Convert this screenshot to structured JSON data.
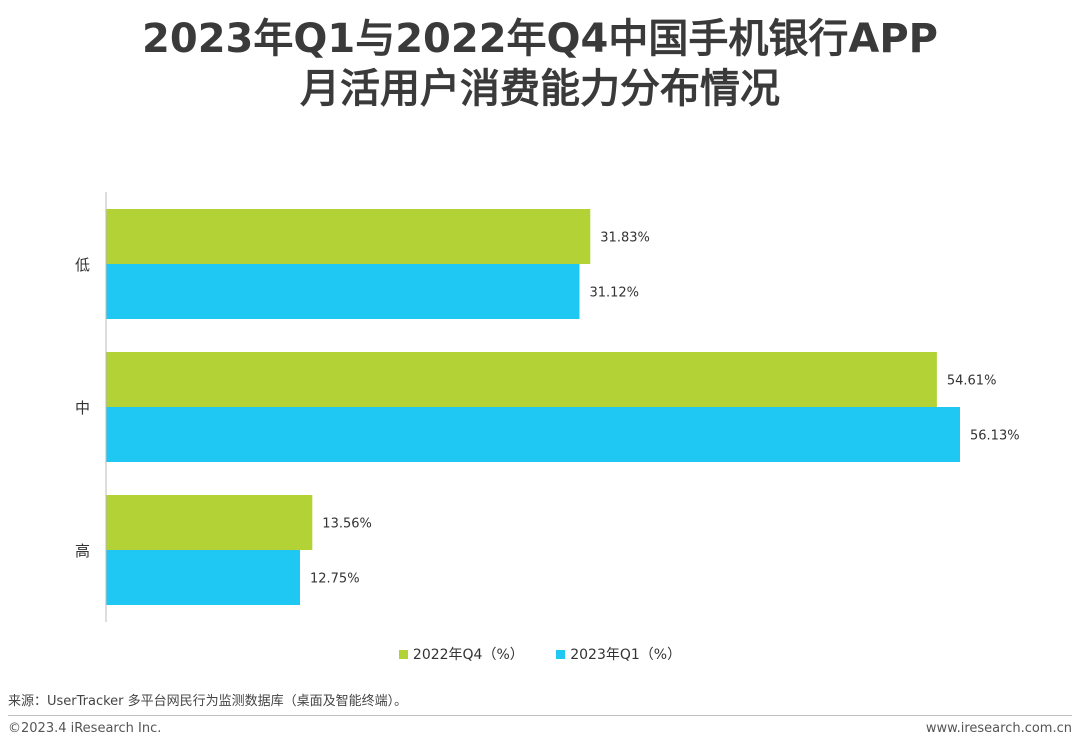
{
  "chart_data": {
    "type": "bar",
    "orientation": "horizontal",
    "title": "2023年Q1与2022年Q4中国手机银行APP\n月活用户消费能力分布情况",
    "categories": [
      "低",
      "中",
      "高"
    ],
    "series": [
      {
        "name": "2022年Q4（%）",
        "values": [
          31.83,
          54.61,
          13.56
        ],
        "labels": [
          "31.83%",
          "54.61%",
          "13.56%"
        ],
        "color": "#b2d235"
      },
      {
        "name": "2023年Q1（%）",
        "values": [
          31.12,
          56.13,
          12.75
        ],
        "labels": [
          "31.12%",
          "56.13%",
          "12.75%"
        ],
        "color": "#1fc8f3"
      }
    ],
    "xlim": [
      0,
      56.13
    ],
    "grid": false,
    "legend_position": "bottom"
  },
  "footer": {
    "source": "来源：UserTracker 多平台网民行为监测数据库（桌面及智能终端）。",
    "copyright": "©2023.4 iResearch Inc.",
    "site": "www.iresearch.com.cn"
  }
}
